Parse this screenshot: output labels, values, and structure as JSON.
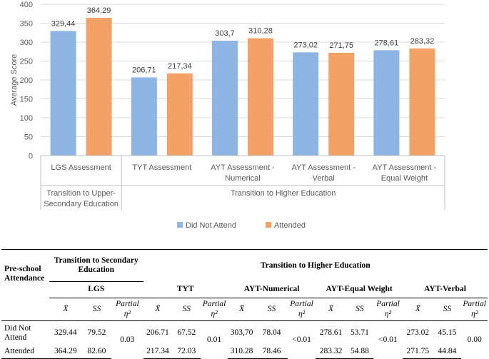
{
  "chart_data": {
    "type": "bar",
    "ylabel": "Average Score",
    "ylim": [
      0,
      400
    ],
    "yticks": [
      "0",
      "50",
      "100",
      "150",
      "200",
      "250",
      "300",
      "350",
      "400"
    ],
    "categories": [
      "LGS Assessment",
      "TYT Assessment",
      "AYT Assessment - Numerical",
      "AYT Assessment - Verbal",
      "AYT Assessment - Equal Weight"
    ],
    "category_lines": [
      [
        "LGS Assessment"
      ],
      [
        "TYT Assessment"
      ],
      [
        "AYT Assessment -",
        "Numerical"
      ],
      [
        "AYT Assessment -",
        "Verbal"
      ],
      [
        "AYT Assessment -",
        "Equal Weight"
      ]
    ],
    "groups": [
      {
        "lines": [
          "Transition to Upper-",
          "Secondary Education"
        ],
        "span": 1
      },
      {
        "lines": [
          "Transition to Higher Education"
        ],
        "span": 4
      }
    ],
    "series": [
      {
        "name": "Did Not Attend",
        "color": "#8EB4E3",
        "values": [
          329.44,
          206.71,
          303.7,
          273.02,
          278.61
        ],
        "labels": [
          "329,44",
          "206,71",
          "303,7",
          "273,02",
          "278,61"
        ]
      },
      {
        "name": "Attended",
        "color": "#F4A167",
        "values": [
          364.29,
          217.34,
          310.28,
          271.75,
          283.32
        ],
        "labels": [
          "364,29",
          "217,34",
          "310,28",
          "271,75",
          "283,32"
        ]
      }
    ],
    "legend_position": "bottom"
  },
  "table": {
    "row_header": "Pre-school Attendance",
    "group1": "Transition to Secondary Education",
    "group2": "Transition to Higher Education",
    "subgroups": [
      "LGS",
      "TYT",
      "AYT-Numerical",
      "AYT-Equal Weight",
      "AYT-Verbal"
    ],
    "mean_symbol": "X̄",
    "sd_symbol": "SS",
    "eta_label": "Partial η²",
    "rows": [
      {
        "label": "Did Not Attend",
        "values": [
          [
            "329.44",
            "79.52"
          ],
          [
            "206.71",
            "67.52"
          ],
          [
            "303,70",
            "78.04"
          ],
          [
            "278.61",
            "53.71"
          ],
          [
            "273.02",
            "45.15"
          ]
        ]
      },
      {
        "label": "Attended",
        "values": [
          [
            "364.29",
            "82.60"
          ],
          [
            "217.34",
            "72.03"
          ],
          [
            "310.28",
            "78.46"
          ],
          [
            "283.32",
            "54.88"
          ],
          [
            "271.75",
            "44.84"
          ]
        ]
      }
    ],
    "eta": [
      "0.03",
      "0.01",
      "<0.01",
      "<0.01",
      "0.00"
    ]
  }
}
